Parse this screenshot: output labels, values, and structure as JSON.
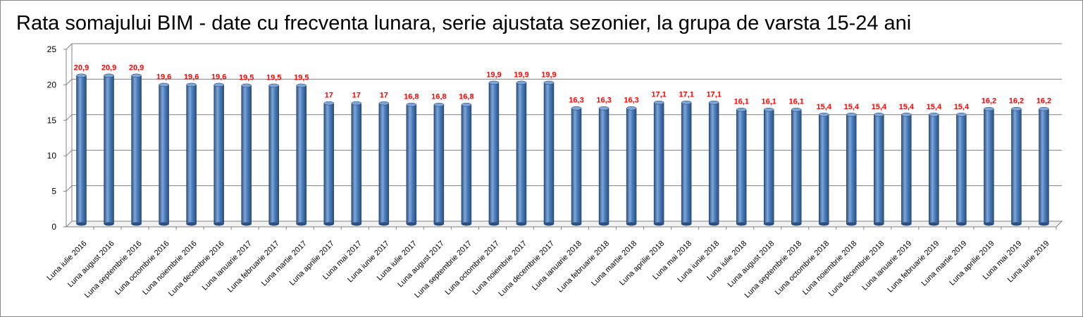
{
  "chart_data": {
    "type": "bar",
    "title": "Rata somajului BIM - date cu frecventa lunara, serie ajustata sezonier, la grupa de varsta 15-24 ani",
    "categories": [
      "Luna iulie 2016",
      "Luna august 2016",
      "Luna septembrie 2016",
      "Luna octombrie 2016",
      "Luna noiembrie 2016",
      "Luna decembrie 2016",
      "Luna ianuarie 2017",
      "Luna februarie 2017",
      "Luna martie 2017",
      "Luna aprilie 2017",
      "Luna mai 2017",
      "Luna iunie 2017",
      "Luna iulie 2017",
      "Luna august 2017",
      "Luna septembrie 2017",
      "Luna octombrie 2017",
      "Luna noiembrie 2017",
      "Luna decembrie 2017",
      "Luna ianuarie 2018",
      "Luna februarie 2018",
      "Luna martie 2018",
      "Luna aprilie 2018",
      "Luna mai 2018",
      "Luna iunie 2018",
      "Luna iulie 2018",
      "Luna august 2018",
      "Luna septembrie 2018",
      "Luna octombrie 2018",
      "Luna noiembrie 2018",
      "Luna decembrie 2018",
      "Luna ianuarie 2019",
      "Luna februarie 2019",
      "Luna martie 2019",
      "Luna aprilie 2019",
      "Luna mai 2019",
      "Luna iunie 2019"
    ],
    "values": [
      20.9,
      20.9,
      20.9,
      19.6,
      19.6,
      19.6,
      19.5,
      19.5,
      19.5,
      17,
      17,
      17,
      16.8,
      16.8,
      16.8,
      19.9,
      19.9,
      19.9,
      16.3,
      16.3,
      16.3,
      17.1,
      17.1,
      17.1,
      16.1,
      16.1,
      16.1,
      15.4,
      15.4,
      15.4,
      15.4,
      15.4,
      15.4,
      16.2,
      16.2,
      16.2
    ],
    "data_labels": [
      "20,9",
      "20,9",
      "20,9",
      "19,6",
      "19,6",
      "19,6",
      "19,5",
      "19,5",
      "19,5",
      "17",
      "17",
      "17",
      "16,8",
      "16,8",
      "16,8",
      "19,9",
      "19,9",
      "19,9",
      "16,3",
      "16,3",
      "16,3",
      "17,1",
      "17,1",
      "17,1",
      "16,1",
      "16,1",
      "16,1",
      "15,4",
      "15,4",
      "15,4",
      "15,4",
      "15,4",
      "15,4",
      "16,2",
      "16,2",
      "16,2"
    ],
    "y_ticks": [
      "0",
      "5",
      "10",
      "15",
      "20",
      "25"
    ],
    "ylim": [
      0,
      25
    ],
    "xlabel": "",
    "ylabel": "",
    "grid": true,
    "legend": "none",
    "style": "3d-cylinder",
    "colors": {
      "bar": "#4a7ebb",
      "bar_dark": "#2a4f80",
      "bar_light": "#7fa6d8",
      "data_label": "#ff0000",
      "gridline": "#808080"
    }
  }
}
